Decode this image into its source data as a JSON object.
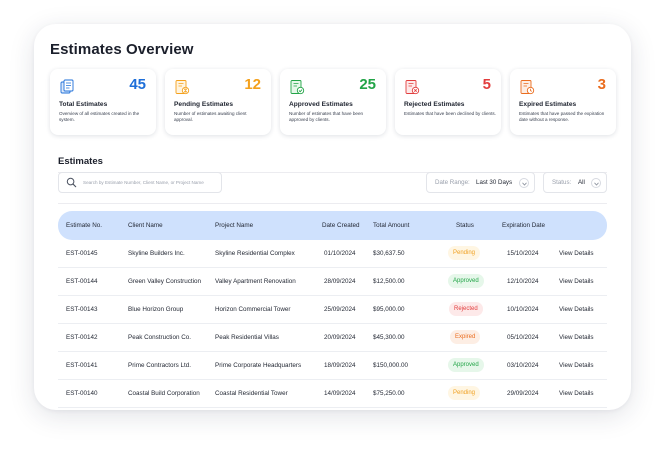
{
  "page": {
    "title": "Estimates Overview"
  },
  "colors": {
    "blue": "#1e6fd9",
    "orange": "#f4a11d",
    "green": "#22a447",
    "red": "#e23d3d",
    "deep_orange": "#ea6d1f",
    "header_bg": "#cfe1fd",
    "pending_text": "#f0a020",
    "pending_bg": "#fff6e3",
    "approved_text": "#22a447",
    "approved_bg": "#e6f7ea",
    "rejected_text": "#e23d3d",
    "rejected_bg": "#fde9e9",
    "expired_text": "#ea6d1f",
    "expired_bg": "#fdeee4"
  },
  "cards": [
    {
      "icon": "document-stack-icon",
      "value": "45",
      "title": "Total Estimates",
      "description": "Overview of all estimates created in the system.",
      "color": "#1e6fd9"
    },
    {
      "icon": "hourglass-document-icon",
      "value": "12",
      "title": "Pending Estimates",
      "description": "Number of estimates awaiting client approval.",
      "color": "#f4a11d"
    },
    {
      "icon": "check-document-icon",
      "value": "25",
      "title": "Approved Estimates",
      "description": "Number of estimates that have been approved by clients.",
      "color": "#22a447"
    },
    {
      "icon": "x-document-icon",
      "value": "5",
      "title": "Rejected Estimates",
      "description": "Estimates that have been declined by clients.",
      "color": "#e23d3d"
    },
    {
      "icon": "clock-document-icon",
      "value": "3",
      "title": "Expired Estimates",
      "description": "Estimates that have passed the expiration date without a response.",
      "color": "#ea6d1f"
    }
  ],
  "section": {
    "title": "Estimates"
  },
  "search": {
    "placeholder": "Search by Estimate Number, Client Name, or Project Name",
    "icon": "search-icon"
  },
  "filters": {
    "date_range": {
      "label": "Date Range:",
      "value": "Last 30 Days",
      "icon": "chevron-down-icon"
    },
    "status": {
      "label": "Status:",
      "value": "All",
      "icon": "chevron-down-icon"
    }
  },
  "table": {
    "columns": [
      "Estimate No.",
      "Client Name",
      "Project Name",
      "Date Created",
      "Total Amount",
      "Status",
      "Expiration Date"
    ],
    "rows": [
      {
        "no": "EST-00145",
        "client": "Skyline Builders Inc.",
        "project": "Skyline Residential Complex",
        "created": "01/10/2024",
        "amount": "$30,637.50",
        "status": "Pending",
        "expires": "15/10/2024",
        "action": "View Details"
      },
      {
        "no": "EST-00144",
        "client": "Green Valley Construction",
        "project": "Valley Apartment Renovation",
        "created": "28/09/2024",
        "amount": "$12,500.00",
        "status": "Approved",
        "expires": "12/10/2024",
        "action": "View Details"
      },
      {
        "no": "EST-00143",
        "client": "Blue Horizon Group",
        "project": "Horizon Commercial Tower",
        "created": "25/09/2024",
        "amount": "$95,000.00",
        "status": "Rejected",
        "expires": "10/10/2024",
        "action": "View Details"
      },
      {
        "no": "EST-00142",
        "client": "Peak Construction Co.",
        "project": "Peak Residential Villas",
        "created": "20/09/2024",
        "amount": "$45,300.00",
        "status": "Expired",
        "expires": "05/10/2024",
        "action": "View Details"
      },
      {
        "no": "EST-00141",
        "client": "Prime Contractors Ltd.",
        "project": "Prime Corporate Headquarters",
        "created": "18/09/2024",
        "amount": "$150,000.00",
        "status": "Approved",
        "expires": "03/10/2024",
        "action": "View Details"
      },
      {
        "no": "EST-00140",
        "client": "Coastal Build Corporation",
        "project": "Coastal Residential Tower",
        "created": "14/09/2024",
        "amount": "$75,250.00",
        "status": "Pending",
        "expires": "29/09/2024",
        "action": "View Details"
      }
    ]
  }
}
